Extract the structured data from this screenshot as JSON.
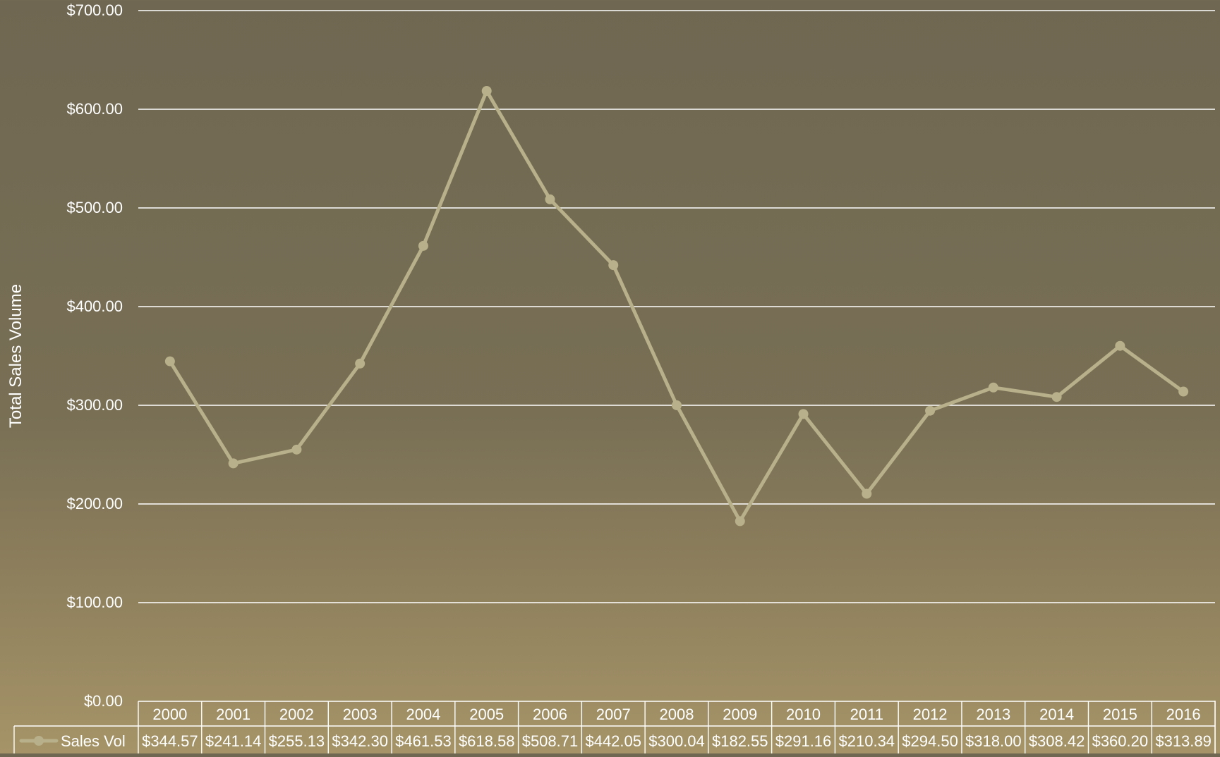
{
  "chart_data": {
    "type": "line",
    "title": "",
    "xlabel": "",
    "ylabel": "Total Sales Volume",
    "categories": [
      "2000",
      "2001",
      "2002",
      "2003",
      "2004",
      "2005",
      "2006",
      "2007",
      "2008",
      "2009",
      "2010",
      "2011",
      "2012",
      "2013",
      "2014",
      "2015",
      "2016"
    ],
    "series": [
      {
        "name": "Sales Vol",
        "values": [
          344.57,
          241.14,
          255.13,
          342.3,
          461.53,
          618.58,
          508.71,
          442.05,
          300.04,
          182.55,
          291.16,
          210.34,
          294.5,
          318.0,
          308.42,
          360.2,
          313.89
        ],
        "value_labels": [
          "$344.57",
          "$241.14",
          "$255.13",
          "$342.30",
          "$461.53",
          "$618.58",
          "$508.71",
          "$442.05",
          "$300.04",
          "$182.55",
          "$291.16",
          "$210.34",
          "$294.50",
          "$318.00",
          "$308.42",
          "$360.20",
          "$313.89"
        ]
      }
    ],
    "y_ticks": [
      "$0.00",
      "$100.00",
      "$200.00",
      "$300.00",
      "$400.00",
      "$500.00",
      "$600.00",
      "$700.00"
    ],
    "ylim": [
      0,
      700
    ],
    "grid": true,
    "legend": "data-table-bottom",
    "colors": {
      "line": "#b8b08a",
      "grid": "#ffffff",
      "text": "#ffffff",
      "background_top": "#6f6751",
      "background_bottom": "#a69468"
    }
  }
}
